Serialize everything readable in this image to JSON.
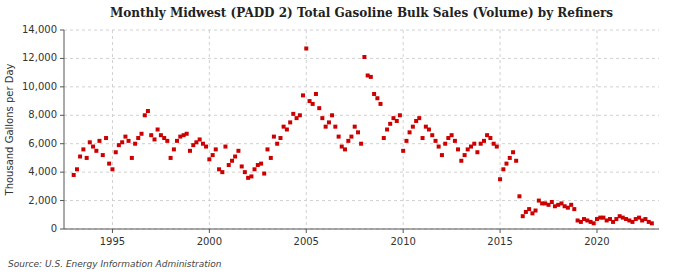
{
  "chart_data": {
    "type": "scatter",
    "title": "Monthly Midwest (PADD 2) Total Gasoline Bulk Sales (Volume) by Refiners",
    "ylabel": "Thousand Gallons per Day",
    "source": "Source: U.S. Energy Information Administration",
    "color": "#cc0000",
    "marker": "square",
    "grid": true,
    "xlim": [
      1992.5,
      2023.2
    ],
    "xticks": [
      1995,
      2000,
      2005,
      2010,
      2015,
      2020
    ],
    "ylim": [
      0,
      14000
    ],
    "yticks": [
      0,
      {
        "value": 2000,
        "label": "2,000"
      },
      {
        "value": 4000,
        "label": "4,000"
      },
      {
        "value": 6000,
        "label": "6,000"
      },
      {
        "value": 8000,
        "label": "8,000"
      },
      {
        "value": 10000,
        "label": "10,000"
      },
      {
        "value": 12000,
        "label": "12,000"
      },
      {
        "value": 14000,
        "label": "14,000"
      }
    ],
    "x": [
      1993.0,
      1993.17,
      1993.33,
      1993.5,
      1993.67,
      1993.83,
      1994.0,
      1994.17,
      1994.33,
      1994.5,
      1994.67,
      1994.83,
      1995.0,
      1995.17,
      1995.33,
      1995.5,
      1995.67,
      1995.83,
      1996.0,
      1996.17,
      1996.33,
      1996.5,
      1996.67,
      1996.83,
      1997.0,
      1997.17,
      1997.33,
      1997.5,
      1997.67,
      1997.83,
      1998.0,
      1998.17,
      1998.33,
      1998.5,
      1998.67,
      1998.83,
      1999.0,
      1999.17,
      1999.33,
      1999.5,
      1999.67,
      1999.83,
      2000.0,
      2000.17,
      2000.33,
      2000.5,
      2000.67,
      2000.83,
      2001.0,
      2001.17,
      2001.33,
      2001.5,
      2001.67,
      2001.83,
      2002.0,
      2002.17,
      2002.33,
      2002.5,
      2002.67,
      2002.83,
      2003.0,
      2003.17,
      2003.33,
      2003.5,
      2003.67,
      2003.83,
      2004.0,
      2004.17,
      2004.33,
      2004.5,
      2004.67,
      2004.83,
      2005.0,
      2005.17,
      2005.33,
      2005.5,
      2005.67,
      2005.83,
      2006.0,
      2006.17,
      2006.33,
      2006.5,
      2006.67,
      2006.83,
      2007.0,
      2007.17,
      2007.33,
      2007.5,
      2007.67,
      2007.83,
      2008.0,
      2008.17,
      2008.33,
      2008.5,
      2008.67,
      2008.83,
      2009.0,
      2009.17,
      2009.33,
      2009.5,
      2009.67,
      2009.83,
      2010.0,
      2010.17,
      2010.33,
      2010.5,
      2010.67,
      2010.83,
      2011.0,
      2011.17,
      2011.33,
      2011.5,
      2011.67,
      2011.83,
      2012.0,
      2012.17,
      2012.33,
      2012.5,
      2012.67,
      2012.83,
      2013.0,
      2013.17,
      2013.33,
      2013.5,
      2013.67,
      2013.83,
      2014.0,
      2014.17,
      2014.33,
      2014.5,
      2014.67,
      2014.83,
      2015.0,
      2015.17,
      2015.33,
      2015.5,
      2015.67,
      2015.83,
      2016.0,
      2016.17,
      2016.33,
      2016.5,
      2016.67,
      2016.83,
      2017.0,
      2017.17,
      2017.33,
      2017.5,
      2017.67,
      2017.83,
      2018.0,
      2018.17,
      2018.33,
      2018.5,
      2018.67,
      2018.83,
      2019.0,
      2019.17,
      2019.33,
      2019.5,
      2019.67,
      2019.83,
      2020.0,
      2020.17,
      2020.33,
      2020.5,
      2020.67,
      2020.83,
      2021.0,
      2021.17,
      2021.33,
      2021.5,
      2021.67,
      2021.83,
      2022.0,
      2022.17,
      2022.33,
      2022.5,
      2022.67,
      2022.83
    ],
    "values": [
      3800,
      4200,
      5100,
      5600,
      5000,
      6100,
      5800,
      5500,
      6200,
      5200,
      6400,
      4600,
      4200,
      5400,
      5900,
      6100,
      6500,
      6200,
      5000,
      6000,
      6400,
      6700,
      8000,
      8300,
      6600,
      6300,
      7000,
      6600,
      6400,
      6200,
      5000,
      5600,
      6200,
      6500,
      6600,
      6700,
      5500,
      5900,
      6100,
      6300,
      6000,
      5800,
      4900,
      5200,
      5600,
      4200,
      4000,
      5800,
      4500,
      4800,
      5100,
      5500,
      4400,
      4000,
      3600,
      3700,
      4200,
      4500,
      4600,
      3900,
      5600,
      5000,
      6500,
      6000,
      6400,
      7200,
      7000,
      7500,
      8100,
      7800,
      8000,
      9400,
      12700,
      9000,
      8800,
      9500,
      8500,
      7800,
      7200,
      7500,
      8000,
      7200,
      6500,
      5800,
      5600,
      6200,
      6500,
      7200,
      6800,
      6000,
      12100,
      10800,
      10700,
      9500,
      9200,
      8800,
      6400,
      7000,
      7400,
      7800,
      7600,
      8000,
      5500,
      6200,
      6800,
      7200,
      7600,
      7800,
      6400,
      7200,
      7000,
      6600,
      6200,
      5800,
      5200,
      6000,
      6400,
      6600,
      6200,
      5600,
      4800,
      5200,
      5600,
      5800,
      6000,
      5400,
      6000,
      6200,
      6600,
      6400,
      6000,
      5800,
      3500,
      4200,
      4600,
      5000,
      5400,
      4800,
      2300,
      900,
      1200,
      1400,
      1100,
      1300,
      2000,
      1800,
      1800,
      1700,
      1900,
      1600,
      1700,
      1800,
      1600,
      1500,
      1700,
      1400,
      600,
      500,
      700,
      600,
      500,
      400,
      700,
      800,
      800,
      600,
      700,
      500,
      700,
      900,
      800,
      700,
      600,
      500,
      700,
      800,
      600,
      700,
      500,
      400
    ]
  }
}
